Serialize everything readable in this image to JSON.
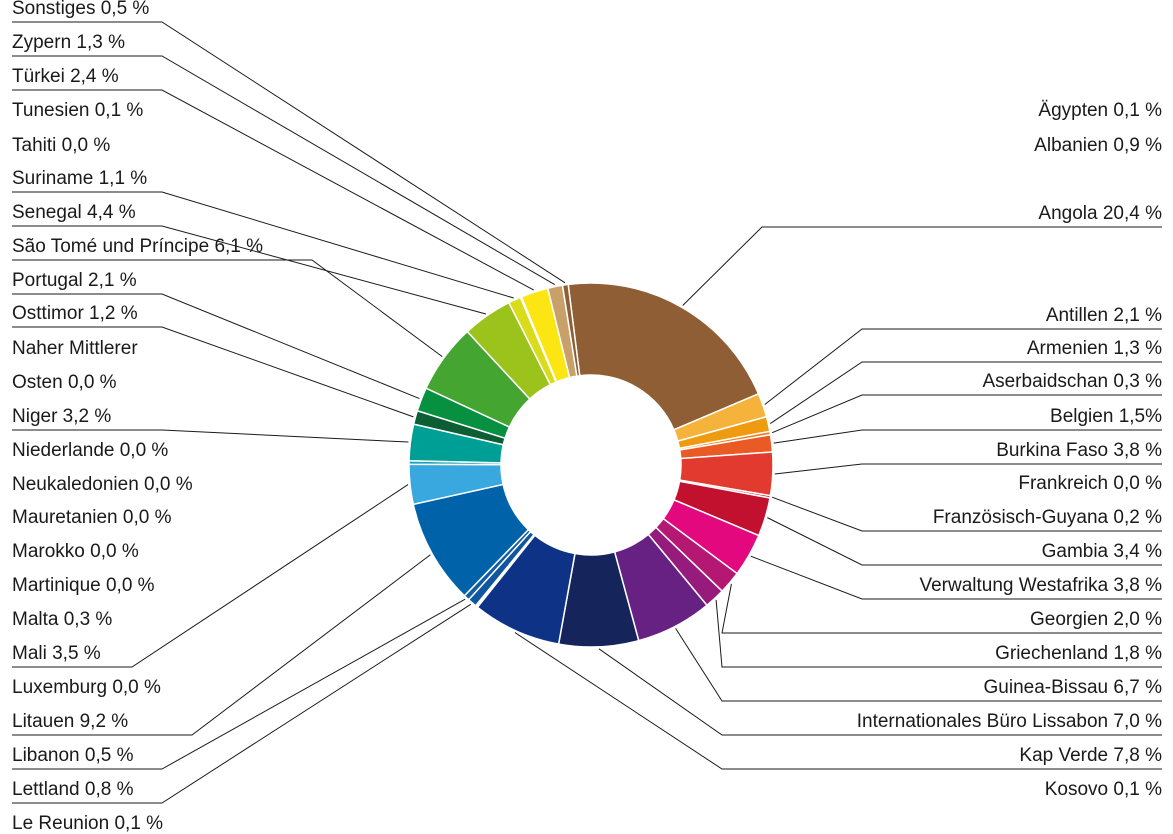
{
  "chart_data": {
    "type": "pie",
    "donut": true,
    "slices": [
      {
        "label": "Angola 20,4 %",
        "value": 20.4,
        "color": "#8f5e34"
      },
      {
        "label": "Antillen 2,1 %",
        "value": 2.1,
        "color": "#f6b33b"
      },
      {
        "label": "Armenien 1,3 %",
        "value": 1.3,
        "color": "#ef9b0f"
      },
      {
        "label": "Aserbaidschan 0,3 %",
        "value": 0.3,
        "color": "#ee7d1f"
      },
      {
        "label": "Belgien 1,5%",
        "value": 1.5,
        "color": "#e95a24"
      },
      {
        "label": "Burkina Faso 3,8 %",
        "value": 3.8,
        "color": "#e33a2f"
      },
      {
        "label": "Frankreich 0,0 %",
        "value": 0.0,
        "color": "#d9262e"
      },
      {
        "label": "Französisch-Guyana 0,2 %",
        "value": 0.2,
        "color": "#cf1a2e"
      },
      {
        "label": "Gambia 3,4 %",
        "value": 3.4,
        "color": "#c1112f"
      },
      {
        "label": "Verwaltung Westafrika 3,8 %",
        "value": 3.8,
        "color": "#e4087e"
      },
      {
        "label": "Georgien 2,0 %",
        "value": 2.0,
        "color": "#b51873"
      },
      {
        "label": "Griechenland 1,8 %",
        "value": 1.8,
        "color": "#961b7d"
      },
      {
        "label": "Guinea-Bissau 6,7 %",
        "value": 6.7,
        "color": "#662183"
      },
      {
        "label": "Internationales Büro Lissabon 7,0 %",
        "value": 7.0,
        "color": "#16245c"
      },
      {
        "label": "Kap Verde 7,8 %",
        "value": 7.8,
        "color": "#0e3285"
      },
      {
        "label": "Kosovo 0,1 %",
        "value": 0.1,
        "color": "#0b3b8a"
      },
      {
        "label": "Le Reunion 0,1 %",
        "value": 0.1,
        "color": "#0c4a96"
      },
      {
        "label": "Lettland 0,8 %",
        "value": 0.8,
        "color": "#0f569f"
      },
      {
        "label": "Libanon 0,5 %",
        "value": 0.5,
        "color": "#115da3"
      },
      {
        "label": "Litauen 9,2 %",
        "value": 9.2,
        "color": "#0062a8"
      },
      {
        "label": "Luxemburg 0,0 %",
        "value": 0.0,
        "color": "#1d7fc3"
      },
      {
        "label": "Mali 3,5 %",
        "value": 3.5,
        "color": "#38a8df"
      },
      {
        "label": "Malta 0,3 %",
        "value": 0.3,
        "color": "#1aa1b8"
      },
      {
        "label": "Martinique 0,0 %",
        "value": 0.0,
        "color": "#0aa59f"
      },
      {
        "label": "Marokko 0,0 %",
        "value": 0.0,
        "color": "#06a29a"
      },
      {
        "label": "Mauretanien 0,0 %",
        "value": 0.0,
        "color": "#04a097"
      },
      {
        "label": "Neukaledonien 0,0 %",
        "value": 0.0,
        "color": "#029e94"
      },
      {
        "label": "Niederlande 0,0 %",
        "value": 0.0,
        "color": "#00a096"
      },
      {
        "label": "Niger 3,2 %",
        "value": 3.2,
        "color": "#009f95"
      },
      {
        "label": "Naher Mittlerer Osten 0,0 %",
        "value": 0.0,
        "color": "#0a6d3c"
      },
      {
        "label": "Osttimor 1,2 %",
        "value": 1.2,
        "color": "#0c5e35"
      },
      {
        "label": "Portugal 2,1 %",
        "value": 2.1,
        "color": "#069040"
      },
      {
        "label": "São Tomé und Príncipe 6,1 %",
        "value": 6.1,
        "color": "#44a631"
      },
      {
        "label": "Senegal 4,4 %",
        "value": 4.4,
        "color": "#9cc21c"
      },
      {
        "label": "Suriname 1,1 %",
        "value": 1.1,
        "color": "#d8dc1a"
      },
      {
        "label": "Tahiti 0,0 %",
        "value": 0.0,
        "color": "#f2e51a"
      },
      {
        "label": "Tunesien 0,1 %",
        "value": 0.1,
        "color": "#f7e81b"
      },
      {
        "label": "Türkei 2,4 %",
        "value": 2.4,
        "color": "#fbe613"
      },
      {
        "label": "Zypern 1,3 %",
        "value": 1.3,
        "color": "#c8a06a"
      },
      {
        "label": "Sonstiges 0,5 %",
        "value": 0.5,
        "color": "#8f5e34"
      },
      {
        "label": "Ägypten 0,1 %",
        "value": 0.1,
        "color": "#8f5e34"
      },
      {
        "label": "Albanien 0,9 %",
        "value": 0.9,
        "color": "#8f5e34"
      }
    ]
  }
}
